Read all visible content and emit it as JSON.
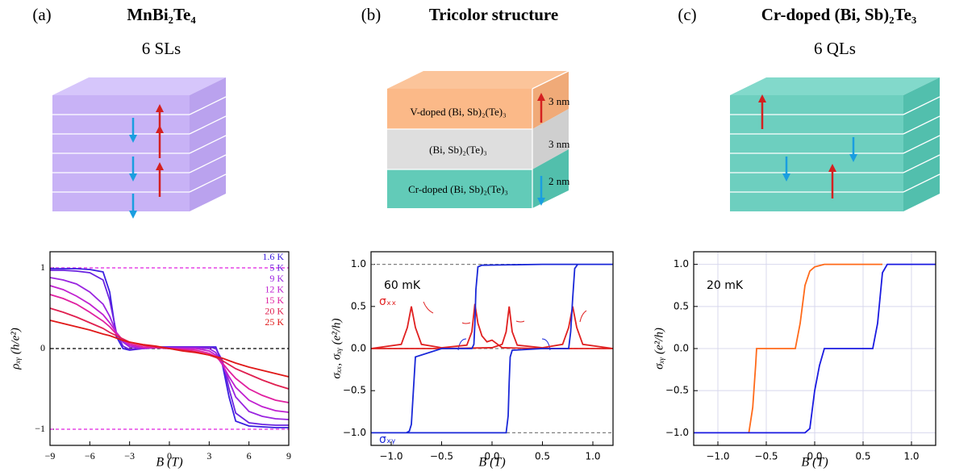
{
  "chart_data": [
    {
      "type": "line",
      "panel_label": "(a)",
      "title": "MnBi₂Te₄",
      "subtitle": "6 SLs",
      "xlabel": "B (T)",
      "ylabel": "ρₓᵧ (h/e²)",
      "legend": "upper right",
      "xlim": [
        -9,
        9
      ],
      "ylim": [
        -1.2,
        1.2
      ],
      "xticks": [
        {
          "value": -9,
          "label": "−9"
        },
        {
          "value": -6,
          "label": "−6"
        },
        {
          "value": -3,
          "label": "−3"
        },
        0,
        3,
        6,
        9
      ],
      "yticks": [
        {
          "value": -1,
          "label": "−1"
        },
        0,
        1
      ],
      "reference_lines": [
        {
          "value": 1,
          "color": "#e020e0"
        },
        {
          "value": -1,
          "color": "#e020e0"
        },
        {
          "value": 0,
          "color": "#000000"
        }
      ],
      "x": [
        -9,
        -8,
        -7,
        -6,
        -5,
        -4.5,
        -4,
        -3.5,
        -3,
        -2,
        -1,
        0,
        1,
        2,
        3,
        3.5,
        4,
        4.5,
        5,
        6,
        7,
        8,
        9
      ],
      "series": [
        {
          "name": "1.6 K",
          "color": "#3a1ee0",
          "values": [
            0.99,
            0.99,
            0.99,
            0.98,
            0.95,
            0.7,
            0.15,
            0.0,
            -0.02,
            0,
            0.02,
            0.02,
            0.02,
            0.02,
            0.02,
            0.02,
            -0.2,
            -0.6,
            -0.9,
            -0.96,
            -0.97,
            -0.98,
            -0.98
          ]
        },
        {
          "name": "5 K",
          "color": "#6a22e0",
          "values": [
            0.97,
            0.97,
            0.96,
            0.94,
            0.85,
            0.6,
            0.2,
            0.03,
            -0.01,
            0,
            0.01,
            0.02,
            0.02,
            0.02,
            0.02,
            0.0,
            -0.15,
            -0.5,
            -0.8,
            -0.92,
            -0.94,
            -0.95,
            -0.95
          ]
        },
        {
          "name": "9 K",
          "color": "#9a24e0",
          "values": [
            0.88,
            0.85,
            0.8,
            0.7,
            0.55,
            0.4,
            0.2,
            0.08,
            0.02,
            0,
            0.01,
            0.01,
            0.01,
            0.01,
            0,
            -0.05,
            -0.2,
            -0.4,
            -0.6,
            -0.78,
            -0.84,
            -0.87,
            -0.88
          ]
        },
        {
          "name": "12 K",
          "color": "#c020d0",
          "values": [
            0.78,
            0.73,
            0.65,
            0.55,
            0.42,
            0.32,
            0.2,
            0.1,
            0.04,
            0.01,
            0.01,
            0,
            0,
            0,
            -0.03,
            -0.08,
            -0.2,
            -0.35,
            -0.48,
            -0.64,
            -0.72,
            -0.77,
            -0.79
          ]
        },
        {
          "name": "15 K",
          "color": "#e020a0",
          "values": [
            0.67,
            0.62,
            0.55,
            0.45,
            0.34,
            0.27,
            0.18,
            0.11,
            0.06,
            0.02,
            0.01,
            0,
            -0.01,
            -0.02,
            -0.06,
            -0.1,
            -0.18,
            -0.28,
            -0.37,
            -0.5,
            -0.58,
            -0.64,
            -0.67
          ]
        },
        {
          "name": "20 K",
          "color": "#e02050",
          "values": [
            0.5,
            0.45,
            0.39,
            0.32,
            0.25,
            0.2,
            0.16,
            0.12,
            0.08,
            0.04,
            0.02,
            0,
            -0.02,
            -0.04,
            -0.08,
            -0.11,
            -0.15,
            -0.2,
            -0.25,
            -0.32,
            -0.39,
            -0.45,
            -0.5
          ]
        },
        {
          "name": "25 K",
          "color": "#e01818",
          "values": [
            0.35,
            0.31,
            0.27,
            0.23,
            0.18,
            0.16,
            0.13,
            0.1,
            0.08,
            0.05,
            0.03,
            0,
            -0.03,
            -0.05,
            -0.08,
            -0.1,
            -0.12,
            -0.15,
            -0.18,
            -0.23,
            -0.27,
            -0.31,
            -0.35
          ]
        }
      ]
    },
    {
      "type": "line",
      "panel_label": "(b)",
      "title": "Tricolor structure",
      "diagram": {
        "layers": [
          {
            "label": "V-doped (Bi, Sb)₂(Te)₃",
            "thickness": "3 nm"
          },
          {
            "label": "(Bi, Sb)₂(Te)₃",
            "thickness": "3 nm"
          },
          {
            "label": "Cr-doped (Bi, Sb)₂(Te)₃",
            "thickness": "2 nm"
          }
        ]
      },
      "xlabel": "B (T)",
      "ylabel": "σₓₓ, σₓᵧ (e²/h)",
      "annotation": "60 mK",
      "xlim": [
        -1.2,
        1.2
      ],
      "ylim": [
        -1.15,
        1.15
      ],
      "xticks": [
        {
          "value": -1,
          "label": "−1.0"
        },
        {
          "value": -0.5,
          "label": "−0.5"
        },
        {
          "value": 0,
          "label": "0.0"
        },
        0.5,
        {
          "value": 1,
          "label": "1.0"
        }
      ],
      "yticks": [
        {
          "value": -1,
          "label": "−1.0"
        },
        {
          "value": -0.5,
          "label": "−0.5"
        },
        {
          "value": 0,
          "label": "0.0"
        },
        0.5,
        {
          "value": 1,
          "label": "1.0"
        }
      ],
      "reference_lines": [
        {
          "value": 1,
          "color": "#808080"
        },
        {
          "value": -1,
          "color": "#808080"
        },
        {
          "value": 0,
          "color": "#808080"
        }
      ],
      "series": [
        {
          "name": "σₓₓ",
          "color": "#e02020",
          "x": [
            -1.2,
            -0.5,
            0,
            0.1,
            0.14,
            0.17,
            0.2,
            0.25,
            0.5,
            0.7,
            0.76,
            0.8,
            0.84,
            0.9,
            1.2,
            1.2,
            0.5,
            0.1,
            0,
            -0.05,
            -0.1,
            -0.14,
            -0.17,
            -0.2,
            -0.25,
            -0.5,
            -0.7,
            -0.76,
            -0.8,
            -0.84,
            -0.9,
            -1.2
          ],
          "values": [
            0,
            0,
            0.01,
            0.05,
            0.2,
            0.5,
            0.2,
            0.04,
            0.01,
            0.05,
            0.25,
            0.5,
            0.25,
            0.05,
            0,
            0,
            0,
            0.01,
            0.1,
            0.08,
            0.15,
            0.3,
            0.53,
            0.2,
            0.04,
            0.01,
            0.05,
            0.25,
            0.5,
            0.25,
            0.05,
            0
          ]
        },
        {
          "name": "σₓᵧ",
          "color": "#1a28d8",
          "x": [
            -1.2,
            -0.5,
            0.14,
            0.16,
            0.17,
            0.18,
            0.2,
            0.5,
            0.76,
            0.78,
            0.8,
            0.82,
            0.85,
            1.2,
            1.2,
            0.5,
            -0.1,
            -0.14,
            -0.16,
            -0.17,
            -0.18,
            -0.2,
            -0.5,
            -0.76,
            -0.78,
            -0.8,
            -0.82,
            -0.85,
            -1.2
          ],
          "values": [
            -1,
            -1,
            -1,
            -0.8,
            -0.4,
            -0.1,
            -0.02,
            0,
            0,
            0.2,
            0.6,
            0.95,
            1,
            1,
            1,
            1,
            0.99,
            0.97,
            0.7,
            0.3,
            0.05,
            0,
            0,
            -0.1,
            -0.5,
            -0.9,
            -0.98,
            -1,
            -1
          ]
        }
      ]
    },
    {
      "type": "line",
      "panel_label": "(c)",
      "title": "Cr-doped (Bi, Sb)₂Te₃",
      "subtitle": "6 QLs",
      "xlabel": "B (T)",
      "ylabel": "σₓᵧ (e²/h)",
      "annotation": "20 mK",
      "grid": true,
      "xlim": [
        -1.25,
        1.25
      ],
      "ylim": [
        -1.15,
        1.15
      ],
      "xticks": [
        {
          "value": -1,
          "label": "−1.0"
        },
        {
          "value": -0.5,
          "label": "−0.5"
        },
        {
          "value": 0,
          "label": "0.0"
        },
        0.5,
        {
          "value": 1,
          "label": "1.0"
        }
      ],
      "yticks": [
        {
          "value": -1,
          "label": "−1.0"
        },
        {
          "value": -0.5,
          "label": "−0.5"
        },
        {
          "value": 0,
          "label": "0.0"
        },
        0.5,
        {
          "value": 1,
          "label": "1.0"
        }
      ],
      "series": [
        {
          "color": "#ff6a1a",
          "x": [
            -0.68,
            -0.64,
            -0.61,
            -0.6,
            -0.2,
            -0.15,
            -0.1,
            -0.05,
            0,
            0.1,
            0.7
          ],
          "values": [
            -1,
            -0.7,
            -0.2,
            0,
            0,
            0.3,
            0.75,
            0.92,
            0.97,
            1,
            1
          ]
        },
        {
          "color": "#1a1ae0",
          "x": [
            -1.25,
            -0.1,
            -0.05,
            0,
            0.05,
            0.1,
            0.6,
            0.65,
            0.7,
            0.75,
            1.25
          ],
          "values": [
            -1,
            -1,
            -0.95,
            -0.5,
            -0.2,
            0,
            0,
            0.3,
            0.9,
            1,
            1
          ]
        }
      ]
    }
  ]
}
